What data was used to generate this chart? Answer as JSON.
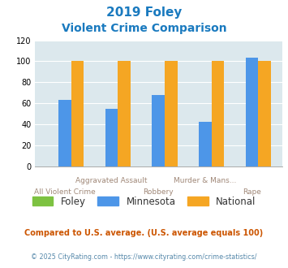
{
  "title_line1": "2019 Foley",
  "title_line2": "Violent Crime Comparison",
  "categories": [
    "All Violent Crime",
    "Aggravated Assault",
    "Robbery",
    "Murder & Mans...",
    "Rape"
  ],
  "foley": [
    0,
    0,
    0,
    0,
    0
  ],
  "minnesota": [
    63,
    55,
    68,
    42,
    103
  ],
  "national": [
    100,
    100,
    100,
    100,
    100
  ],
  "foley_color": "#7dc241",
  "minnesota_color": "#4d96e8",
  "national_color": "#f5a623",
  "ylim": [
    0,
    120
  ],
  "yticks": [
    0,
    20,
    40,
    60,
    80,
    100,
    120
  ],
  "bg_color": "#dce8ed",
  "title_color": "#1a7abf",
  "xlabel_top_color": "#a08878",
  "xlabel_bot_color": "#a08878",
  "legend_label_color": "#333333",
  "footnote1": "Compared to U.S. average. (U.S. average equals 100)",
  "footnote2": "© 2025 CityRating.com - https://www.cityrating.com/crime-statistics/",
  "footnote1_color": "#cc5500",
  "footnote2_color": "#5588aa"
}
